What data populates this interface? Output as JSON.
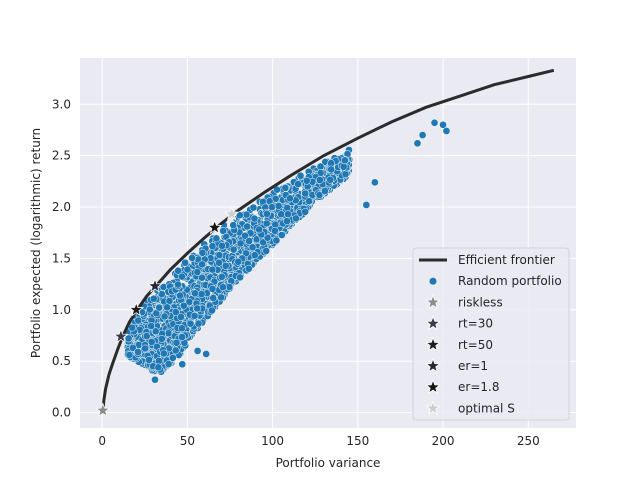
{
  "chart_data": {
    "type": "scatter",
    "title": "",
    "xlabel": "Portfolio variance",
    "ylabel": "Portfolio expected (logarithmic) return",
    "xlim": [
      -13,
      278
    ],
    "ylim": [
      -0.15,
      3.45
    ],
    "xticks": [
      0,
      50,
      100,
      150,
      200,
      250
    ],
    "yticks": [
      0.0,
      0.5,
      1.0,
      1.5,
      2.0,
      2.5,
      3.0
    ],
    "grid": true,
    "legend_position": "lower-right",
    "colors": {
      "frontier": "#2b2b2b",
      "random": "#1f77b4",
      "plot_bg": "#eaeaf2",
      "grid": "#ffffff"
    },
    "frontier": {
      "name": "Efficient frontier",
      "points": [
        [
          0.5,
          0.02
        ],
        [
          1,
          0.12
        ],
        [
          2,
          0.23
        ],
        [
          4,
          0.37
        ],
        [
          6,
          0.47
        ],
        [
          9,
          0.61
        ],
        [
          12,
          0.74
        ],
        [
          16,
          0.88
        ],
        [
          21,
          1.01
        ],
        [
          26,
          1.13
        ],
        [
          32,
          1.24
        ],
        [
          40,
          1.39
        ],
        [
          50,
          1.55
        ],
        [
          60,
          1.7
        ],
        [
          70,
          1.84
        ],
        [
          80,
          1.97
        ],
        [
          95,
          2.14
        ],
        [
          110,
          2.3
        ],
        [
          130,
          2.5
        ],
        [
          150,
          2.67
        ],
        [
          170,
          2.83
        ],
        [
          190,
          2.97
        ],
        [
          210,
          3.08
        ],
        [
          230,
          3.19
        ],
        [
          250,
          3.27
        ],
        [
          265,
          3.33
        ]
      ]
    },
    "random_portfolio": {
      "name": "Random portfolio",
      "count": 2200,
      "envelope": [
        [
          15,
          0.55
        ],
        [
          20,
          0.5
        ],
        [
          25,
          0.46
        ],
        [
          30,
          0.4
        ],
        [
          35,
          0.38
        ],
        [
          45,
          0.55
        ],
        [
          55,
          0.8
        ],
        [
          65,
          1.0
        ],
        [
          75,
          1.2
        ],
        [
          85,
          1.38
        ],
        [
          95,
          1.55
        ],
        [
          110,
          1.8
        ],
        [
          125,
          2.05
        ],
        [
          140,
          2.25
        ],
        [
          155,
          2.45
        ],
        [
          170,
          2.6
        ],
        [
          185,
          2.65
        ],
        [
          200,
          2.72
        ]
      ],
      "outliers": [
        [
          16,
          0.56
        ],
        [
          18,
          0.63
        ],
        [
          21,
          0.59
        ],
        [
          31,
          0.32
        ],
        [
          33,
          0.44
        ],
        [
          47,
          0.47
        ],
        [
          56,
          0.6
        ],
        [
          61,
          0.57
        ],
        [
          86,
          1.4
        ],
        [
          155,
          2.02
        ],
        [
          160,
          2.24
        ],
        [
          185,
          2.62
        ],
        [
          195,
          2.82
        ],
        [
          200,
          2.8
        ],
        [
          202,
          2.74
        ],
        [
          188,
          2.7
        ]
      ]
    },
    "markers": [
      {
        "name": "riskless",
        "x": 0.4,
        "y": 0.02,
        "color": "#8c8c8c"
      },
      {
        "name": "rt=30",
        "x": 11,
        "y": 0.74,
        "color": "#3c3c50"
      },
      {
        "name": "rt=50",
        "x": 20,
        "y": 1.0,
        "color": "#1e1e1e"
      },
      {
        "name": "er=1",
        "x": 31,
        "y": 1.23,
        "color": "#262636"
      },
      {
        "name": "er=1.8",
        "x": 66,
        "y": 1.8,
        "color": "#141414"
      },
      {
        "name": "optimal S",
        "x": 76,
        "y": 1.93,
        "color": "#cfcfcf"
      }
    ],
    "legend": [
      "Efficient frontier",
      "Random portfolio",
      "riskless",
      "rt=30",
      "rt=50",
      "er=1",
      "er=1.8",
      "optimal S"
    ]
  }
}
